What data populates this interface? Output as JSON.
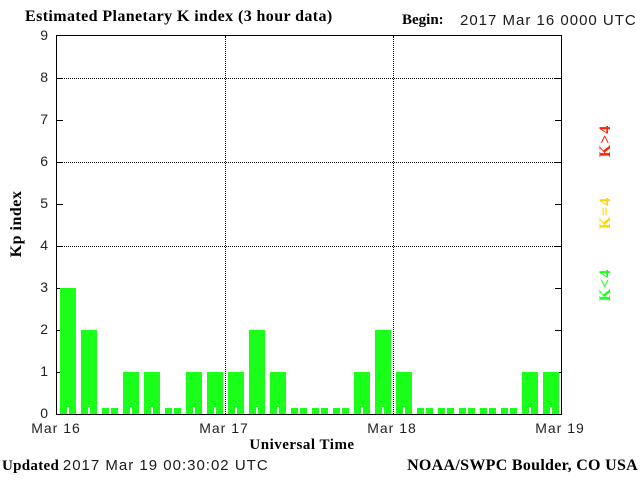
{
  "title": "Estimated Planetary K index (3 hour data)",
  "begin": {
    "label": "Begin:",
    "value": "2017 Mar 16 0000 UTC"
  },
  "footer": {
    "updated_label": "Updated",
    "updated_value": "2017 Mar 19 00:30:02 UTC",
    "source": "NOAA/SWPC Boulder, CO USA"
  },
  "legend": [
    {
      "label": "K>4",
      "color": "#ff2200"
    },
    {
      "label": "K=4",
      "color": "#ffd700"
    },
    {
      "label": "K<4",
      "color": "#1aff1a"
    }
  ],
  "chart_data": {
    "type": "bar",
    "title": "Estimated Planetary K index (3 hour data)",
    "begin": "2017 Mar 16 0000 UTC",
    "xlabel": "Universal Time",
    "ylabel": "Kp index",
    "ylim": [
      0,
      9
    ],
    "yticks": [
      0,
      1,
      2,
      3,
      4,
      5,
      6,
      7,
      8,
      9
    ],
    "grid_dotted_y": [
      4,
      6,
      8
    ],
    "interval_hours": 3,
    "bars_per_day": 8,
    "day_labels": [
      "Mar 16",
      "Mar 17",
      "Mar 18",
      "Mar 19"
    ],
    "values": [
      3,
      2,
      0,
      1,
      1,
      0,
      1,
      1,
      1,
      2,
      1,
      0,
      0,
      0,
      1,
      2,
      1,
      0,
      0,
      0,
      0,
      0,
      1,
      1
    ],
    "bar_color": "#1aff1a",
    "color_rule": {
      "below_4": "#1aff1a",
      "equal_4": "#ffd700",
      "above_4": "#ff2200"
    },
    "grid": "dotted",
    "legend_position": "right"
  }
}
